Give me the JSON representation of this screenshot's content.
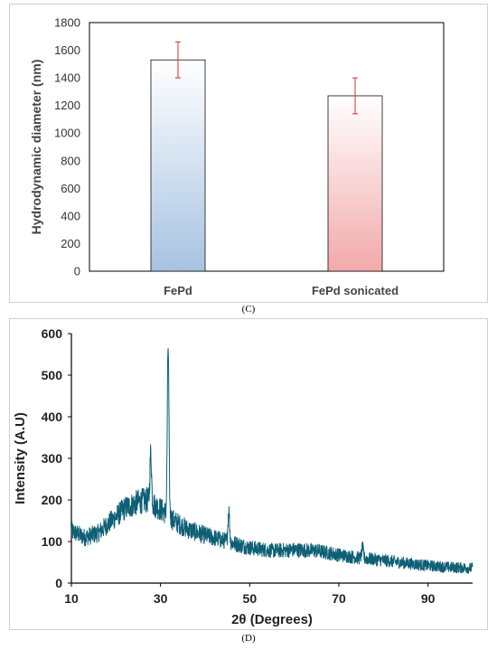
{
  "chart_data": [
    {
      "type": "bar",
      "categories": [
        "FePd",
        "FePd sonicated"
      ],
      "values": [
        1530,
        1270
      ],
      "error": [
        130,
        130
      ],
      "title": "",
      "xlabel": "",
      "ylabel": "Hydrodynamic diameter (nm)",
      "ylim": [
        0,
        1800
      ],
      "yticks": [
        0,
        200,
        400,
        600,
        800,
        1000,
        1200,
        1400,
        1600,
        1800
      ],
      "grid": false,
      "colors": {
        "FePd": "#a7c3e2",
        "FePd sonicated": "#f2a9a9",
        "error_bar": "#e03020"
      }
    },
    {
      "type": "line",
      "title": "",
      "xlabel": "2θ (Degrees)",
      "ylabel": "Intensity (A.U)",
      "xlim": [
        10,
        100
      ],
      "ylim": [
        0,
        600
      ],
      "xticks": [
        10,
        30,
        50,
        70,
        90
      ],
      "yticks": [
        0,
        100,
        200,
        300,
        400,
        500,
        600
      ],
      "grid": false,
      "color": "#0e5f76",
      "baseline_x": [
        10,
        13,
        16,
        19,
        22,
        25,
        27,
        29,
        31,
        33,
        36,
        40,
        45,
        50,
        55,
        60,
        65,
        70,
        75,
        80,
        85,
        90,
        95,
        100
      ],
      "baseline_y": [
        125,
        110,
        120,
        150,
        180,
        195,
        200,
        185,
        170,
        150,
        130,
        115,
        100,
        85,
        78,
        80,
        78,
        68,
        60,
        55,
        48,
        42,
        38,
        36
      ],
      "peaks": [
        {
          "x": 27.8,
          "y": 315
        },
        {
          "x": 31.7,
          "y": 570
        },
        {
          "x": 45.3,
          "y": 175
        },
        {
          "x": 75.3,
          "y": 85
        }
      ]
    }
  ],
  "captions": {
    "c": "(C)",
    "d": "(D)"
  }
}
